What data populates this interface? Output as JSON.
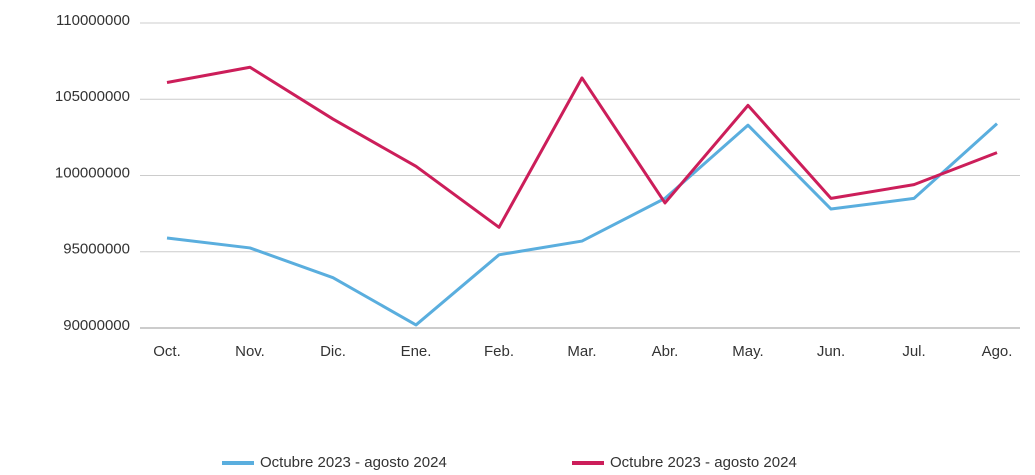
{
  "chart_data": {
    "type": "line",
    "categories": [
      "Oct.",
      "Nov.",
      "Dic.",
      "Ene.",
      "Feb.",
      "Mar.",
      "Abr.",
      "May.",
      "Jun.",
      "Jul.",
      "Ago."
    ],
    "series": [
      {
        "name": "Octubre 2023 - agosto 2024",
        "color": "#5aaede",
        "values": [
          95900000,
          95250000,
          93300000,
          90200000,
          94800000,
          95700000,
          98500000,
          103300000,
          97800000,
          98500000,
          103400000
        ]
      },
      {
        "name": "Octubre 2023 - agosto 2024",
        "color": "#cc1e5a",
        "values": [
          106100000,
          107100000,
          103700000,
          100600000,
          96600000,
          106400000,
          98200000,
          104600000,
          98500000,
          99400000,
          101500000
        ]
      }
    ],
    "ylim": [
      90000000,
      110000000
    ],
    "yticks": [
      90000000,
      95000000,
      100000000,
      105000000,
      110000000
    ],
    "grid": true,
    "legend": "bottom"
  }
}
